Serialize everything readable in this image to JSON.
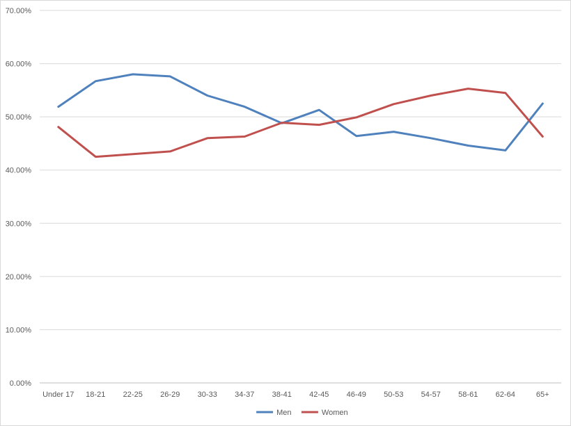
{
  "chart_data": {
    "type": "line",
    "title": "",
    "xlabel": "",
    "ylabel": "",
    "categories": [
      "Under 17",
      "18-21",
      "22-25",
      "26-29",
      "30-33",
      "34-37",
      "38-41",
      "42-45",
      "46-49",
      "50-53",
      "54-57",
      "58-61",
      "62-64",
      "65+"
    ],
    "y_ticks": [
      "0.00%",
      "10.00%",
      "20.00%",
      "30.00%",
      "40.00%",
      "50.00%",
      "60.00%",
      "70.00%"
    ],
    "ylim": [
      0,
      70
    ],
    "grid": true,
    "legend_position": "bottom",
    "series": [
      {
        "name": "Men",
        "color": "#4f81bd",
        "values": [
          51.9,
          56.7,
          58.0,
          57.6,
          54.0,
          51.9,
          48.8,
          51.3,
          46.4,
          47.2,
          46.0,
          44.6,
          43.7,
          52.5
        ]
      },
      {
        "name": "Women",
        "color": "#c0504d",
        "values": [
          48.1,
          42.5,
          43.0,
          43.5,
          46.0,
          46.3,
          48.9,
          48.5,
          49.9,
          52.4,
          54.0,
          55.3,
          54.5,
          46.3
        ]
      }
    ]
  }
}
